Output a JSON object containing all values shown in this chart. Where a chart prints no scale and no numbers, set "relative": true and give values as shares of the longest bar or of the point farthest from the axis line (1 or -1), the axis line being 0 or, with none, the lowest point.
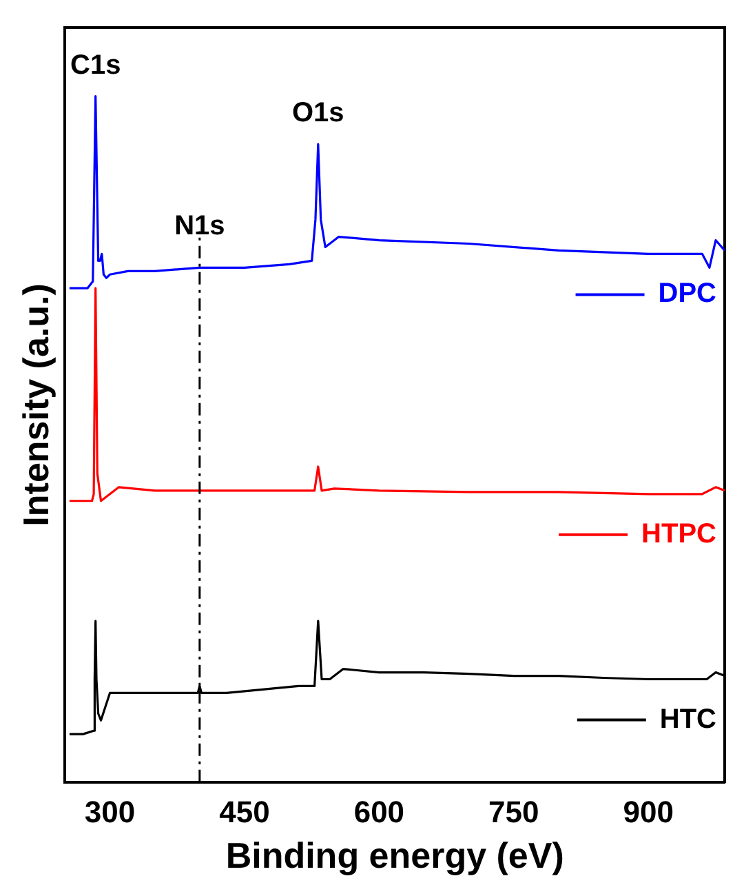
{
  "chart_data": {
    "type": "line",
    "xlabel": "Binding energy (eV)",
    "ylabel": "Intensity (a.u.)",
    "relative": true,
    "xlim": [
      250,
      985
    ],
    "xticks": [
      300,
      450,
      600,
      750,
      900
    ],
    "tick_labels": "x",
    "grid": false,
    "legend": "right",
    "marker": "none",
    "line_style": "solid",
    "series": [
      {
        "name": "DPC",
        "color": "#0000ff",
        "x": [
          255,
          275,
          281,
          284,
          287,
          289,
          291,
          293,
          296,
          300,
          320,
          350,
          400,
          450,
          500,
          525,
          529,
          532,
          535,
          540,
          555,
          600,
          700,
          800,
          900,
          960,
          968,
          975,
          985
        ],
        "values": [
          0.72,
          0.72,
          0.73,
          1.0,
          0.76,
          0.76,
          0.77,
          0.74,
          0.735,
          0.74,
          0.745,
          0.745,
          0.75,
          0.75,
          0.755,
          0.76,
          0.82,
          0.93,
          0.82,
          0.78,
          0.795,
          0.79,
          0.785,
          0.775,
          0.77,
          0.77,
          0.75,
          0.79,
          0.775
        ]
      },
      {
        "name": "HTPC",
        "color": "#ff0000",
        "x": [
          255,
          280,
          282,
          284,
          286,
          290,
          295,
          300,
          310,
          350,
          400,
          450,
          500,
          528,
          532,
          536,
          550,
          600,
          700,
          800,
          900,
          960,
          975,
          985
        ],
        "values": [
          0.41,
          0.41,
          0.42,
          0.72,
          0.45,
          0.41,
          0.415,
          0.42,
          0.43,
          0.425,
          0.425,
          0.425,
          0.425,
          0.425,
          0.46,
          0.425,
          0.428,
          0.425,
          0.423,
          0.423,
          0.42,
          0.42,
          0.43,
          0.425
        ]
      },
      {
        "name": "HTC",
        "color": "#000000",
        "x": [
          255,
          270,
          282,
          283,
          284,
          285,
          287,
          290,
          295,
          300,
          320,
          350,
          380,
          398,
          400,
          402,
          430,
          470,
          510,
          528,
          532,
          536,
          545,
          560,
          600,
          650,
          700,
          750,
          800,
          850,
          900,
          950,
          965,
          975,
          985
        ],
        "values": [
          0.07,
          0.07,
          0.075,
          0.15,
          0.235,
          0.15,
          0.1,
          0.09,
          0.11,
          0.13,
          0.13,
          0.13,
          0.13,
          0.13,
          0.14,
          0.13,
          0.13,
          0.135,
          0.14,
          0.14,
          0.235,
          0.15,
          0.15,
          0.165,
          0.16,
          0.16,
          0.158,
          0.155,
          0.155,
          0.152,
          0.15,
          0.15,
          0.15,
          0.16,
          0.155
        ]
      }
    ],
    "ref_lines": [
      {
        "axis": "x",
        "value": 400,
        "line_style": "dashed",
        "color": "#000000"
      }
    ],
    "annotations": [
      {
        "text": "C1s",
        "x": 284,
        "y": 1.0
      },
      {
        "text": "N1s",
        "x": 400,
        "y": 0.81
      },
      {
        "text": "O1s",
        "x": 532,
        "y": 0.93
      }
    ]
  }
}
